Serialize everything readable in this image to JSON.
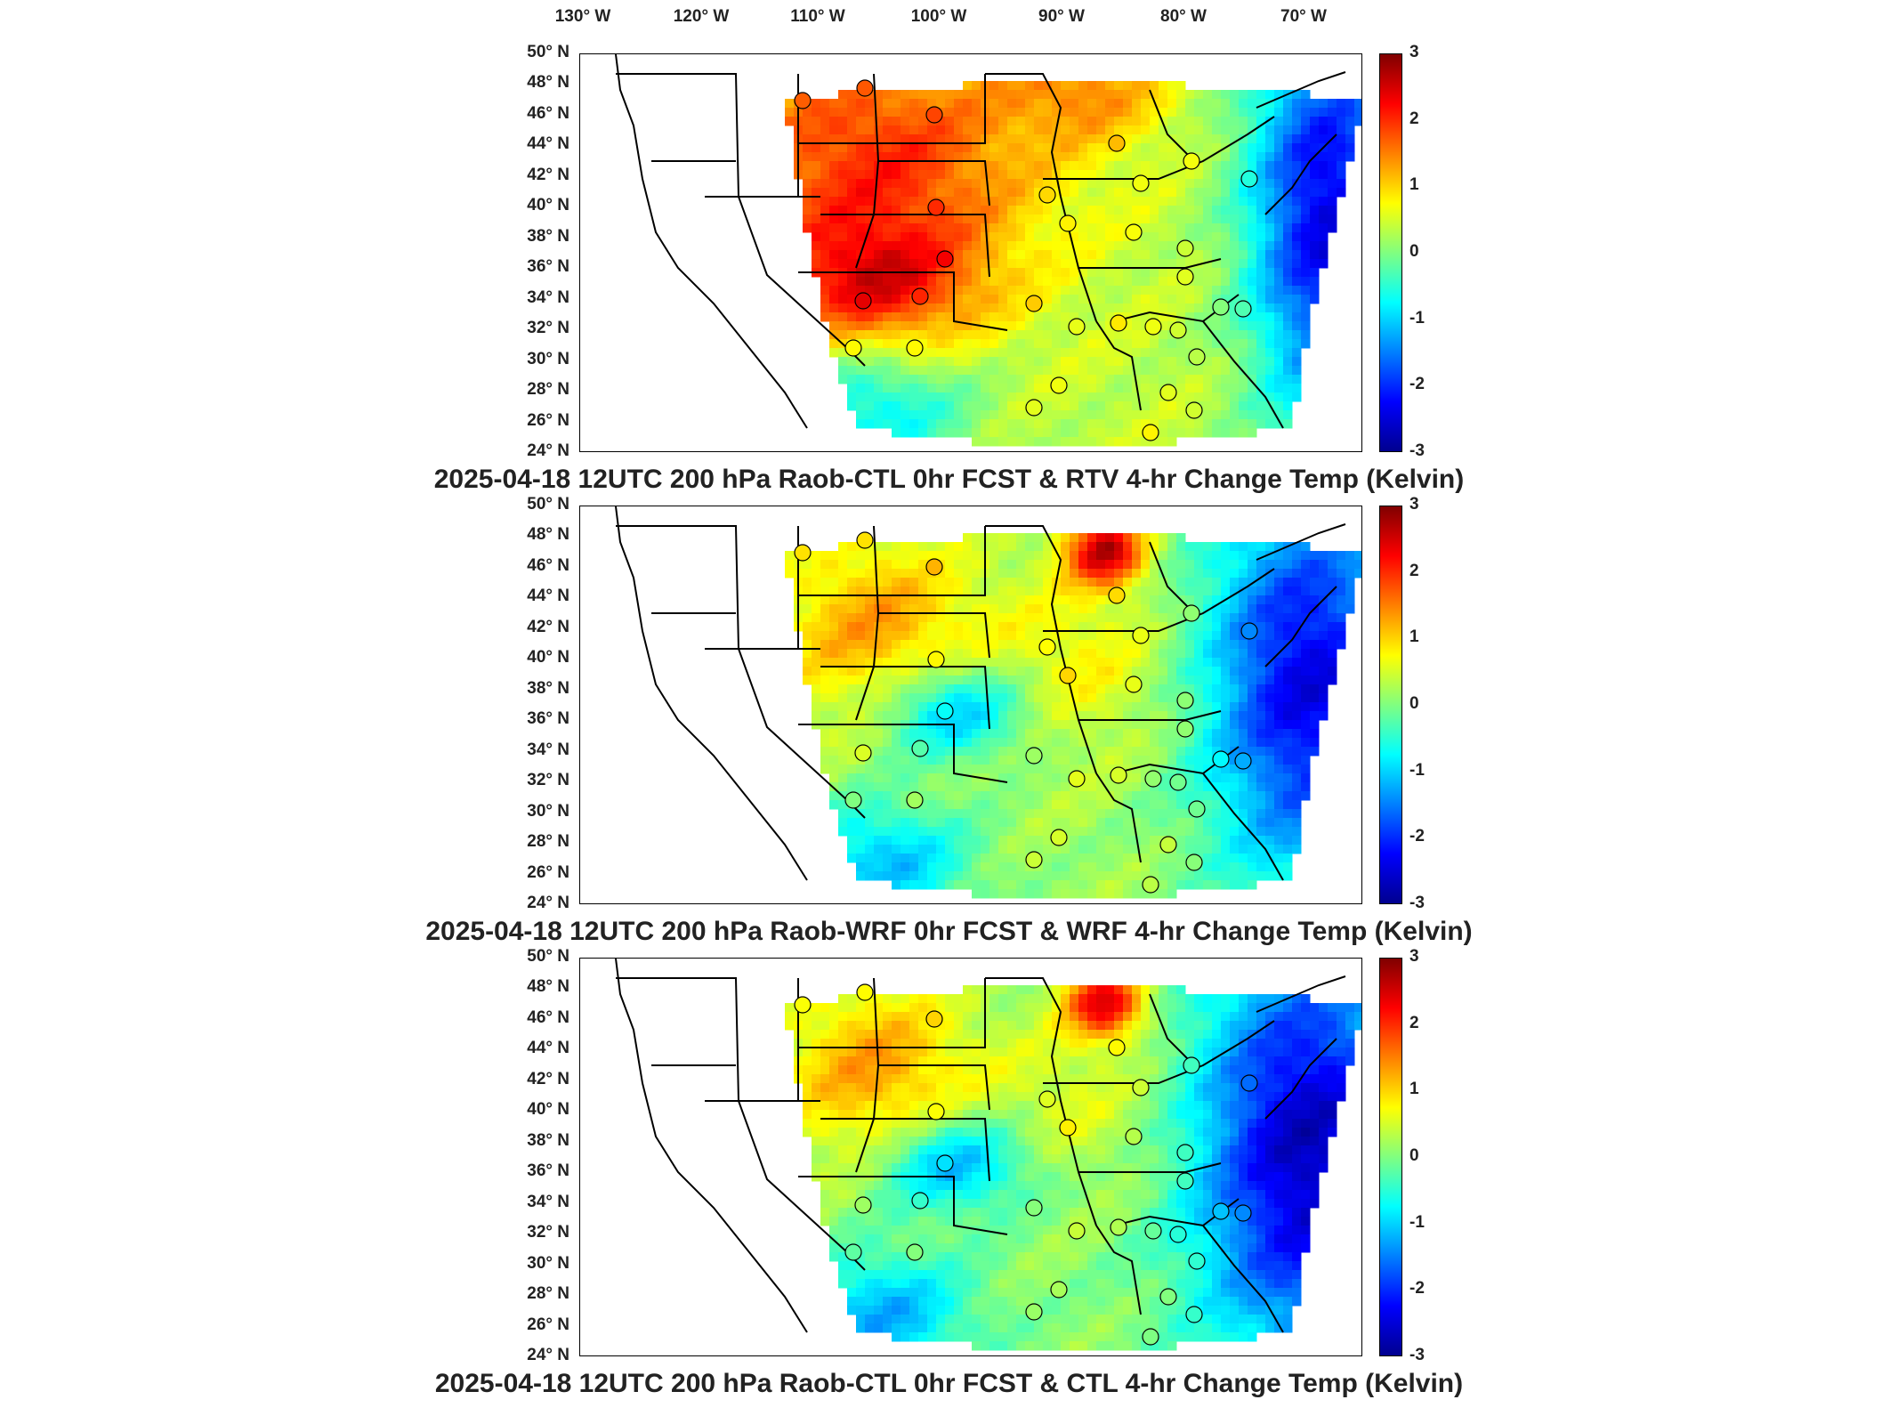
{
  "lon_labels": [
    "130° W",
    "120° W",
    "110° W",
    "100° W",
    "90° W",
    "80° W",
    "70° W"
  ],
  "lat_labels": [
    "50° N",
    "48° N",
    "46° N",
    "44° N",
    "42° N",
    "40° N",
    "38° N",
    "36° N",
    "34° N",
    "32° N",
    "30° N",
    "28° N",
    "26° N",
    "24° N"
  ],
  "colorbar": {
    "ticks": [
      "3",
      "2",
      "1",
      "0",
      "-1",
      "-2",
      "-3"
    ],
    "range": [
      -3,
      3
    ],
    "colors": [
      "#00008f",
      "#0000ff",
      "#0080ff",
      "#00ffff",
      "#80ff80",
      "#ffff00",
      "#ff8000",
      "#ff0000",
      "#800000"
    ]
  },
  "panels": [
    {
      "title": "2025-04-18 12UTC 200 hPa Raob-CTL 0hr FCST & RTV 4-hr Change Temp (Kelvin)",
      "field": "rtv"
    },
    {
      "title": "2025-04-18 12UTC 200 hPa Raob-WRF 0hr FCST & WRF 4-hr Change Temp (Kelvin)",
      "field": "wrf"
    },
    {
      "title": "2025-04-18 12UTC 200 hPa Raob-CTL 0hr FCST & CTL 4-hr Change Temp (Kelvin)",
      "field": "ctl"
    }
  ]
}
